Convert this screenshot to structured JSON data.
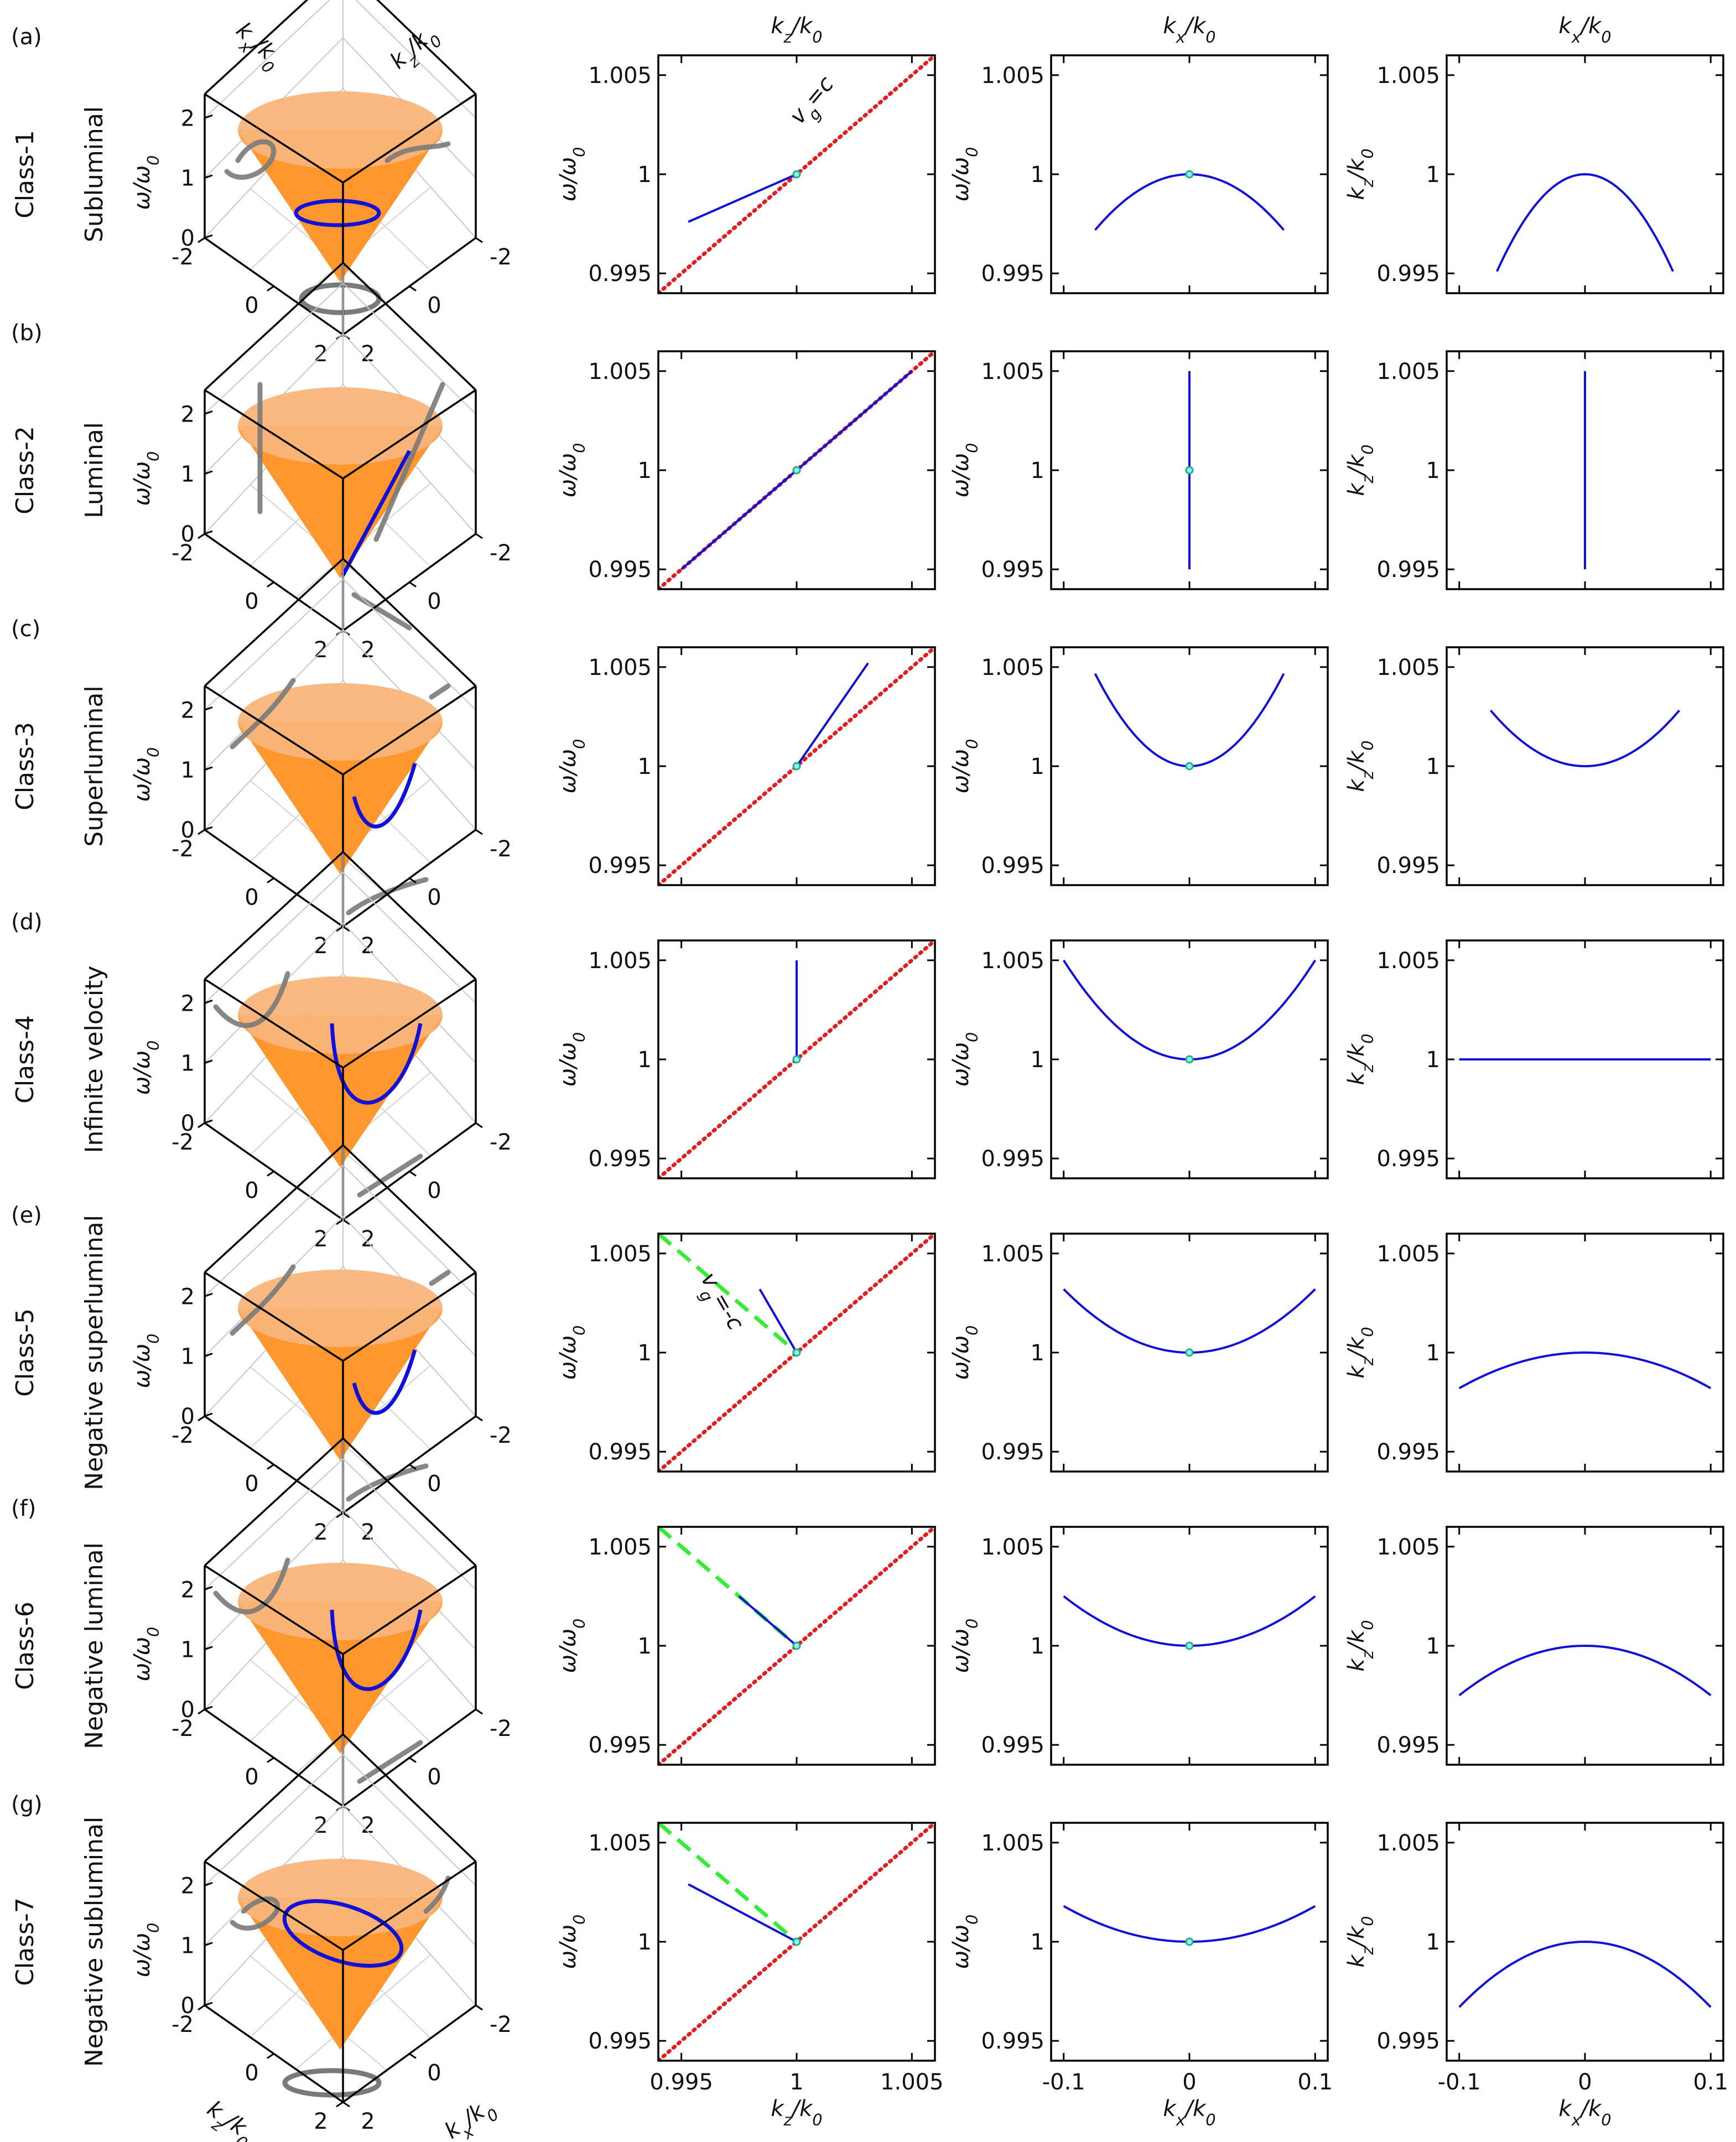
{
  "column_headers": [
    "k_z/k_0",
    "k_x/k_0",
    "k_x/k_0"
  ],
  "dot_color": "#2ca89a",
  "colors": {
    "curve": "#1010d8",
    "light_line": "#e02020",
    "neg_light_line": "#33ee33",
    "cone": "#ff8c1a",
    "projection": "#7a7a7a"
  },
  "panel_3d_axes": {
    "zlabel": "ω/ω_0",
    "xlabel": "k_x/k_0",
    "ylabel": "k_z/k_0",
    "z_ticks": [
      "0",
      "1",
      "2"
    ],
    "left_ticks": [
      "-2",
      "0",
      "2"
    ],
    "right_ticks": [
      "2",
      "0",
      "-2"
    ]
  },
  "chart_data": [
    {
      "type": "line",
      "panel": "(a)",
      "class": "Class-1",
      "label": "Subluminal",
      "dispersion_kz": {
        "xlabel": "k_z/k_0",
        "ylabel": "ω/ω_0",
        "xlim": [
          0.994,
          1.006
        ],
        "ylim": [
          0.994,
          1.006
        ],
        "x_ticks": [],
        "y_ticks": [
          "0.995",
          "1",
          "1.005"
        ],
        "annotation": "v_g=c",
        "series": [
          {
            "name": "light line",
            "style": "red-dotted",
            "x": [
              0.994,
              1.006
            ],
            "y": [
              0.994,
              1.006
            ]
          },
          {
            "name": "spectral support",
            "style": "blue",
            "x": [
              0.9953,
              1.0
            ],
            "y": [
              0.9976,
              1.0
            ]
          }
        ]
      },
      "dispersion_kx": {
        "xlabel": "k_x/k_0",
        "ylabel": "ω/ω_0",
        "xlim": [
          -0.11,
          0.11
        ],
        "ylim": [
          0.994,
          1.006
        ],
        "y_ticks": [
          "0.995",
          "1",
          "1.005"
        ],
        "x_ticks": [],
        "curve": {
          "kind": "parabola",
          "a": -0.5,
          "x_range": [
            -0.075,
            0.075
          ]
        }
      },
      "kz_vs_kx": {
        "xlabel": "k_x/k_0",
        "ylabel": "k_z/k_0",
        "xlim": [
          -0.11,
          0.11
        ],
        "ylim": [
          0.994,
          1.006
        ],
        "y_ticks": [
          "0.995",
          "1",
          "1.005"
        ],
        "x_ticks": [],
        "curve": {
          "kind": "parabola",
          "a": -1.0,
          "x_range": [
            -0.07,
            0.07
          ]
        }
      }
    },
    {
      "type": "line",
      "panel": "(b)",
      "class": "Class-2",
      "label": "Luminal",
      "dispersion_kz": {
        "xlabel": "k_z/k_0",
        "ylabel": "ω/ω_0",
        "xlim": [
          0.994,
          1.006
        ],
        "ylim": [
          0.994,
          1.006
        ],
        "y_ticks": [
          "0.995",
          "1",
          "1.005"
        ],
        "x_ticks": [],
        "series": [
          {
            "name": "light line",
            "style": "red-dotted",
            "x": [
              0.994,
              1.006
            ],
            "y": [
              0.994,
              1.006
            ]
          },
          {
            "name": "spectral support",
            "style": "blue",
            "x": [
              0.995,
              1.005
            ],
            "y": [
              0.995,
              1.005
            ]
          }
        ]
      },
      "dispersion_kx": {
        "xlabel": "k_x/k_0",
        "ylabel": "ω/ω_0",
        "xlim": [
          -0.11,
          0.11
        ],
        "ylim": [
          0.994,
          1.006
        ],
        "y_ticks": [
          "0.995",
          "1",
          "1.005"
        ],
        "x_ticks": [],
        "curve": {
          "kind": "vertical",
          "x": 0,
          "y_range": [
            0.995,
            1.005
          ]
        }
      },
      "kz_vs_kx": {
        "xlabel": "k_x/k_0",
        "ylabel": "k_z/k_0",
        "xlim": [
          -0.11,
          0.11
        ],
        "ylim": [
          0.994,
          1.006
        ],
        "y_ticks": [
          "0.995",
          "1",
          "1.005"
        ],
        "x_ticks": [],
        "curve": {
          "kind": "vertical",
          "x": 0,
          "y_range": [
            0.995,
            1.005
          ]
        }
      }
    },
    {
      "type": "line",
      "panel": "(c)",
      "class": "Class-3",
      "label": "Superluminal",
      "dispersion_kz": {
        "xlabel": "k_z/k_0",
        "ylabel": "ω/ω_0",
        "xlim": [
          0.994,
          1.006
        ],
        "ylim": [
          0.994,
          1.006
        ],
        "y_ticks": [
          "0.995",
          "1",
          "1.005"
        ],
        "x_ticks": [],
        "series": [
          {
            "name": "light line",
            "style": "red-dotted",
            "x": [
              0.994,
              1.006
            ],
            "y": [
              0.994,
              1.006
            ]
          },
          {
            "name": "spectral support",
            "style": "blue",
            "x": [
              1.0,
              1.0031
            ],
            "y": [
              1.0,
              1.0052
            ]
          }
        ]
      },
      "dispersion_kx": {
        "xlabel": "k_x/k_0",
        "ylabel": "ω/ω_0",
        "xlim": [
          -0.11,
          0.11
        ],
        "ylim": [
          0.994,
          1.006
        ],
        "y_ticks": [
          "0.995",
          "1",
          "1.005"
        ],
        "x_ticks": [],
        "curve": {
          "kind": "parabola",
          "a": 0.83,
          "x_range": [
            -0.075,
            0.075
          ]
        }
      },
      "kz_vs_kx": {
        "xlabel": "k_x/k_0",
        "ylabel": "k_z/k_0",
        "xlim": [
          -0.11,
          0.11
        ],
        "ylim": [
          0.994,
          1.006
        ],
        "y_ticks": [
          "0.995",
          "1",
          "1.005"
        ],
        "x_ticks": [],
        "curve": {
          "kind": "parabola",
          "a": 0.5,
          "x_range": [
            -0.075,
            0.075
          ]
        }
      }
    },
    {
      "type": "line",
      "panel": "(d)",
      "class": "Class-4",
      "label": "Infinite velocity",
      "dispersion_kz": {
        "xlabel": "k_z/k_0",
        "ylabel": "ω/ω_0",
        "xlim": [
          0.994,
          1.006
        ],
        "ylim": [
          0.994,
          1.006
        ],
        "y_ticks": [
          "0.995",
          "1",
          "1.005"
        ],
        "x_ticks": [],
        "series": [
          {
            "name": "light line",
            "style": "red-dotted",
            "x": [
              0.994,
              1.006
            ],
            "y": [
              0.994,
              1.006
            ]
          },
          {
            "name": "spectral support",
            "style": "blue",
            "x": [
              1.0,
              1.0
            ],
            "y": [
              1.0,
              1.005
            ]
          }
        ]
      },
      "dispersion_kx": {
        "xlabel": "k_x/k_0",
        "ylabel": "ω/ω_0",
        "xlim": [
          -0.11,
          0.11
        ],
        "ylim": [
          0.994,
          1.006
        ],
        "y_ticks": [
          "0.995",
          "1",
          "1.005"
        ],
        "x_ticks": [],
        "curve": {
          "kind": "parabola",
          "a": 0.5,
          "x_range": [
            -0.1,
            0.1
          ]
        }
      },
      "kz_vs_kx": {
        "xlabel": "k_x/k_0",
        "ylabel": "k_z/k_0",
        "xlim": [
          -0.11,
          0.11
        ],
        "ylim": [
          0.994,
          1.006
        ],
        "y_ticks": [
          "0.995",
          "1",
          "1.005"
        ],
        "x_ticks": [],
        "curve": {
          "kind": "parabola",
          "a": 0.0,
          "x_range": [
            -0.1,
            0.1
          ]
        }
      }
    },
    {
      "type": "line",
      "panel": "(e)",
      "class": "Class-5",
      "label": "Negative superluminal",
      "dispersion_kz": {
        "xlabel": "k_z/k_0",
        "ylabel": "ω/ω_0",
        "xlim": [
          0.994,
          1.006
        ],
        "ylim": [
          0.994,
          1.006
        ],
        "y_ticks": [
          "0.995",
          "1",
          "1.005"
        ],
        "x_ticks": [],
        "annotation": "v_g=-c",
        "series": [
          {
            "name": "light line",
            "style": "red-dotted",
            "x": [
              0.994,
              1.006
            ],
            "y": [
              0.994,
              1.006
            ]
          },
          {
            "name": "negative light line",
            "style": "green-dashed",
            "x": [
              0.994,
              1.0
            ],
            "y": [
              1.006,
              1.0
            ]
          },
          {
            "name": "spectral support",
            "style": "blue",
            "x": [
              0.9984,
              1.0
            ],
            "y": [
              1.0032,
              1.0
            ]
          }
        ]
      },
      "dispersion_kx": {
        "xlabel": "k_x/k_0",
        "ylabel": "ω/ω_0",
        "xlim": [
          -0.11,
          0.11
        ],
        "ylim": [
          0.994,
          1.006
        ],
        "y_ticks": [
          "0.995",
          "1",
          "1.005"
        ],
        "x_ticks": [],
        "curve": {
          "kind": "parabola",
          "a": 0.32,
          "x_range": [
            -0.1,
            0.1
          ]
        }
      },
      "kz_vs_kx": {
        "xlabel": "k_x/k_0",
        "ylabel": "k_z/k_0",
        "xlim": [
          -0.11,
          0.11
        ],
        "ylim": [
          0.994,
          1.006
        ],
        "y_ticks": [
          "0.995",
          "1",
          "1.005"
        ],
        "x_ticks": [],
        "curve": {
          "kind": "parabola",
          "a": -0.18,
          "x_range": [
            -0.1,
            0.1
          ]
        }
      }
    },
    {
      "type": "line",
      "panel": "(f)",
      "class": "Class-6",
      "label": "Negative luminal",
      "dispersion_kz": {
        "xlabel": "k_z/k_0",
        "ylabel": "ω/ω_0",
        "xlim": [
          0.994,
          1.006
        ],
        "ylim": [
          0.994,
          1.006
        ],
        "y_ticks": [
          "0.995",
          "1",
          "1.005"
        ],
        "x_ticks": [],
        "series": [
          {
            "name": "light line",
            "style": "red-dotted",
            "x": [
              0.994,
              1.006
            ],
            "y": [
              0.994,
              1.006
            ]
          },
          {
            "name": "negative light line",
            "style": "green-dashed",
            "x": [
              0.994,
              1.0
            ],
            "y": [
              1.006,
              1.0
            ]
          },
          {
            "name": "spectral support",
            "style": "blue",
            "x": [
              0.9975,
              1.0
            ],
            "y": [
              1.0025,
              1.0
            ]
          }
        ]
      },
      "dispersion_kx": {
        "xlabel": "k_x/k_0",
        "ylabel": "ω/ω_0",
        "xlim": [
          -0.11,
          0.11
        ],
        "ylim": [
          0.994,
          1.006
        ],
        "y_ticks": [
          "0.995",
          "1",
          "1.005"
        ],
        "x_ticks": [],
        "curve": {
          "kind": "parabola",
          "a": 0.25,
          "x_range": [
            -0.1,
            0.1
          ]
        }
      },
      "kz_vs_kx": {
        "xlabel": "k_x/k_0",
        "ylabel": "k_z/k_0",
        "xlim": [
          -0.11,
          0.11
        ],
        "ylim": [
          0.994,
          1.006
        ],
        "y_ticks": [
          "0.995",
          "1",
          "1.005"
        ],
        "x_ticks": [],
        "curve": {
          "kind": "parabola",
          "a": -0.25,
          "x_range": [
            -0.1,
            0.1
          ]
        }
      }
    },
    {
      "type": "line",
      "panel": "(g)",
      "class": "Class-7",
      "label": "Negative subluminal",
      "dispersion_kz": {
        "xlabel": "k_z/k_0",
        "ylabel": "ω/ω_0",
        "xlim": [
          0.994,
          1.006
        ],
        "ylim": [
          0.994,
          1.006
        ],
        "y_ticks": [
          "0.995",
          "1",
          "1.005"
        ],
        "x_ticks": [
          "0.995",
          "1",
          "1.005"
        ],
        "series": [
          {
            "name": "light line",
            "style": "red-dotted",
            "x": [
              0.994,
              1.006
            ],
            "y": [
              0.994,
              1.006
            ]
          },
          {
            "name": "negative light line",
            "style": "green-dashed",
            "x": [
              0.994,
              1.0
            ],
            "y": [
              1.006,
              1.0
            ]
          },
          {
            "name": "spectral support",
            "style": "blue",
            "x": [
              0.9953,
              1.0
            ],
            "y": [
              1.0029,
              1.0
            ]
          }
        ]
      },
      "dispersion_kx": {
        "xlabel": "k_x/k_0",
        "ylabel": "ω/ω_0",
        "xlim": [
          -0.11,
          0.11
        ],
        "ylim": [
          0.994,
          1.006
        ],
        "y_ticks": [
          "0.995",
          "1",
          "1.005"
        ],
        "x_ticks": [
          "-0.1",
          "0",
          "0.1"
        ],
        "curve": {
          "kind": "parabola",
          "a": 0.18,
          "x_range": [
            -0.1,
            0.1
          ]
        }
      },
      "kz_vs_kx": {
        "xlabel": "k_x/k_0",
        "ylabel": "k_z/k_0",
        "xlim": [
          -0.11,
          0.11
        ],
        "ylim": [
          0.994,
          1.006
        ],
        "y_ticks": [
          "0.995",
          "1",
          "1.005"
        ],
        "x_ticks": [
          "-0.1",
          "0",
          "0.1"
        ],
        "curve": {
          "kind": "parabola",
          "a": -0.33,
          "x_range": [
            -0.1,
            0.1
          ]
        }
      }
    }
  ],
  "cone_curves": [
    {
      "kind": "ellipse"
    },
    {
      "kind": "line"
    },
    {
      "kind": "hyperbola"
    },
    {
      "kind": "parabola"
    },
    {
      "kind": "hyperbola2"
    },
    {
      "kind": "parabola2"
    },
    {
      "kind": "ellipse2"
    }
  ]
}
